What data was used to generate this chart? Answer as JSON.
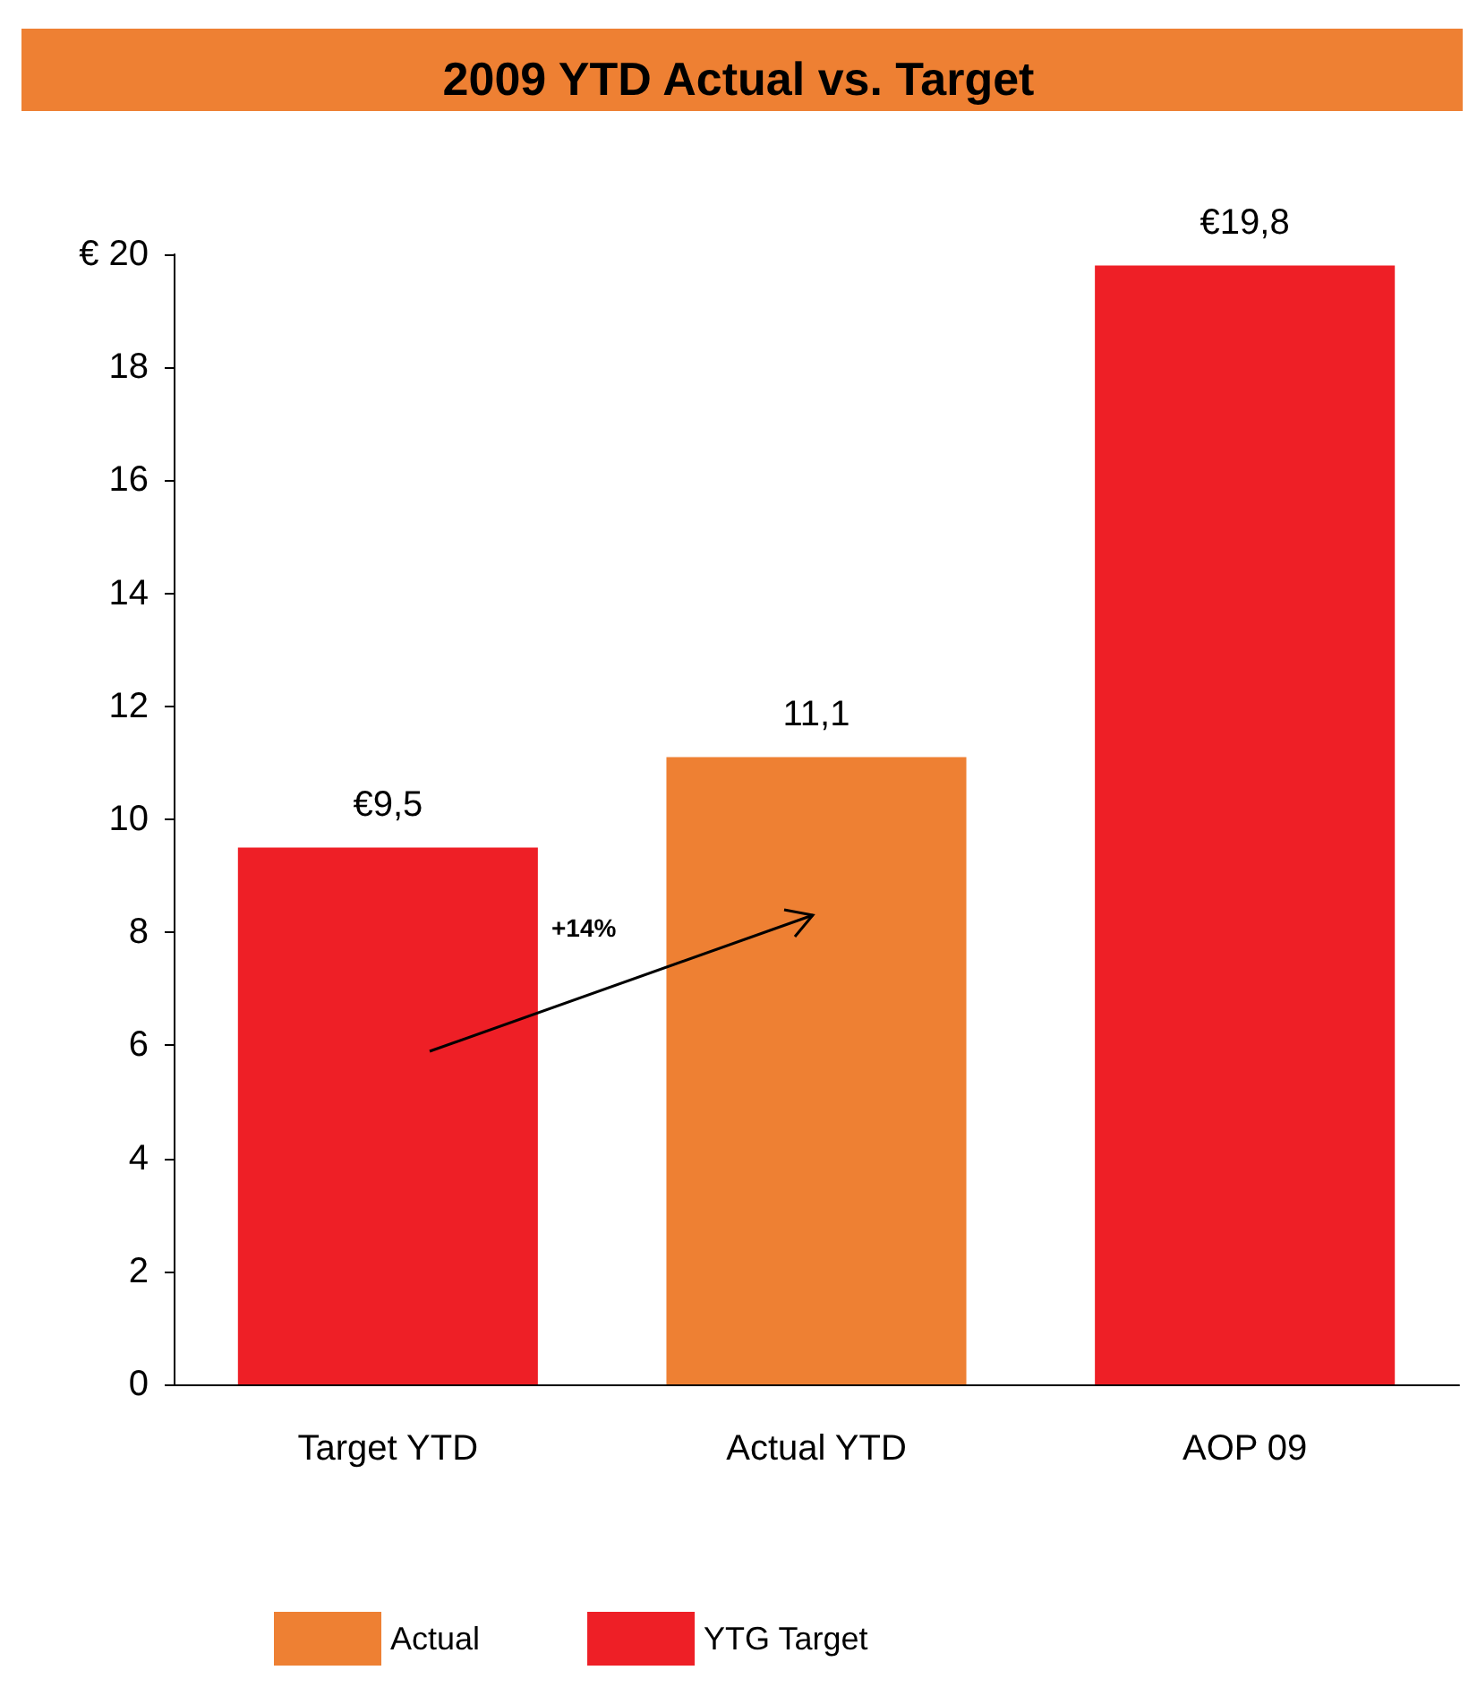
{
  "chart_data": {
    "type": "bar",
    "title": "2009 YTD Actual vs. Target",
    "categories": [
      "Target YTD",
      "Actual YTD",
      "AOP 09"
    ],
    "stacked": true,
    "series": [
      {
        "name": "Actual",
        "color": "#ee8033",
        "values": [
          null,
          11.1,
          null
        ],
        "value_labels": [
          null,
          "11,1",
          null
        ]
      },
      {
        "name": "YTG Target",
        "color": "#ee1f26",
        "values": [
          9.5,
          null,
          19.8
        ],
        "value_labels": [
          "€9,5",
          null,
          "€19,8"
        ]
      }
    ],
    "ylim": [
      0,
      20
    ],
    "yticks": [
      0,
      2,
      4,
      6,
      8,
      10,
      12,
      14,
      16,
      18,
      {
        "value": 20,
        "label": "€ 20"
      }
    ],
    "grid": false,
    "legend": "bottom left",
    "annotations": [
      "+14%"
    ]
  }
}
